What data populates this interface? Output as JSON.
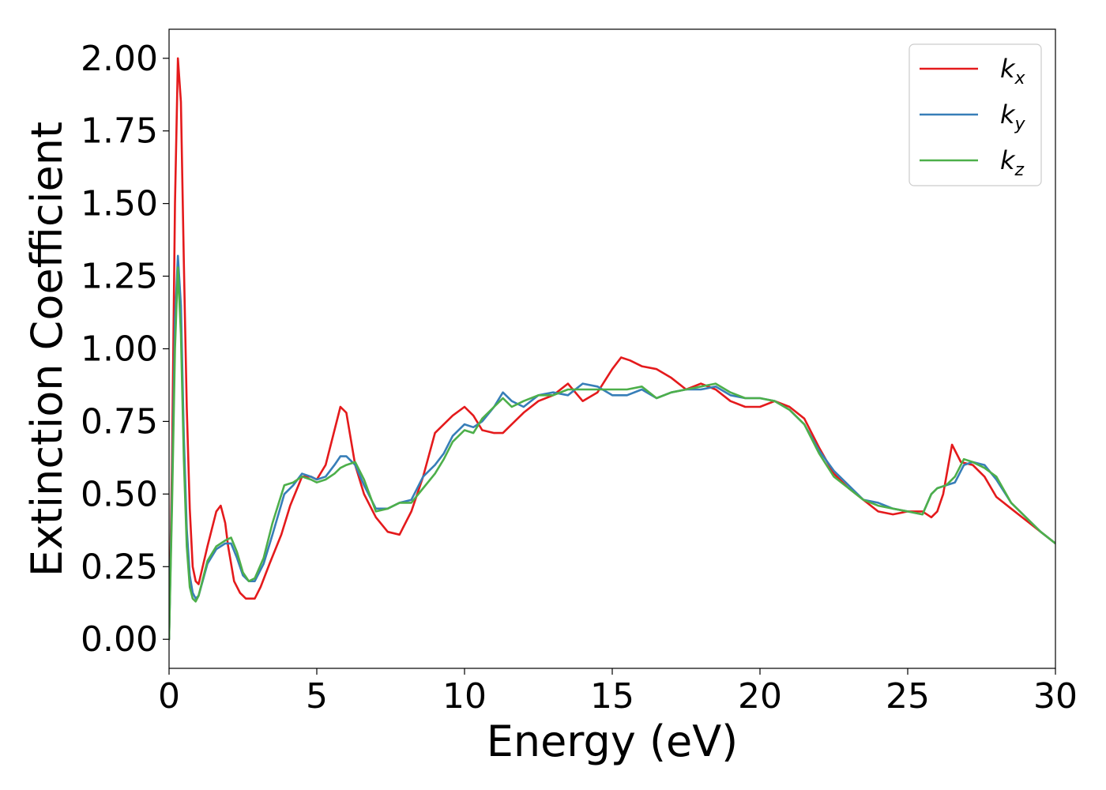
{
  "chart_data": {
    "type": "line",
    "title": "",
    "xlabel": "Energy (eV)",
    "ylabel": "Extinction Coefficient",
    "xlim": [
      0,
      30
    ],
    "ylim": [
      -0.1,
      2.1
    ],
    "xticks": [
      0,
      5,
      10,
      15,
      20,
      25,
      30
    ],
    "xtick_labels": [
      "0",
      "5",
      "10",
      "15",
      "20",
      "25",
      "30"
    ],
    "yticks": [
      0.0,
      0.25,
      0.5,
      0.75,
      1.0,
      1.25,
      1.5,
      1.75,
      2.0
    ],
    "ytick_labels": [
      "0.00",
      "0.25",
      "0.50",
      "0.75",
      "1.00",
      "1.25",
      "1.50",
      "1.75",
      "2.00"
    ],
    "grid": false,
    "legend_position": "top-right",
    "series": [
      {
        "name": "k_x",
        "label_base": "k",
        "label_sub": "x",
        "color": "#e41a1c",
        "x": [
          0,
          0.1,
          0.2,
          0.3,
          0.4,
          0.5,
          0.6,
          0.7,
          0.8,
          0.9,
          1.0,
          1.3,
          1.6,
          1.75,
          1.9,
          2.0,
          2.2,
          2.4,
          2.6,
          2.9,
          3.1,
          3.4,
          3.8,
          4.1,
          4.5,
          4.8,
          5.0,
          5.3,
          5.6,
          5.8,
          6.0,
          6.3,
          6.6,
          7.0,
          7.4,
          7.8,
          8.2,
          8.6,
          9.0,
          9.3,
          9.6,
          10.0,
          10.3,
          10.6,
          11.0,
          11.3,
          11.6,
          12.0,
          12.5,
          13.0,
          13.5,
          14.0,
          14.5,
          15.0,
          15.3,
          15.6,
          16.0,
          16.5,
          17.0,
          17.5,
          18.0,
          18.5,
          19.0,
          19.5,
          20.0,
          20.5,
          21.0,
          21.5,
          22.0,
          22.5,
          23.0,
          23.5,
          24.0,
          24.5,
          25.0,
          25.5,
          25.8,
          26.0,
          26.2,
          26.5,
          26.8,
          27.2,
          27.6,
          28.0,
          28.5,
          29.0,
          29.5,
          30.0
        ],
        "y": [
          0.0,
          0.6,
          1.5,
          2.0,
          1.85,
          1.3,
          0.8,
          0.45,
          0.25,
          0.2,
          0.19,
          0.32,
          0.44,
          0.46,
          0.4,
          0.32,
          0.2,
          0.16,
          0.14,
          0.14,
          0.18,
          0.26,
          0.36,
          0.46,
          0.56,
          0.56,
          0.55,
          0.6,
          0.72,
          0.8,
          0.78,
          0.6,
          0.5,
          0.42,
          0.37,
          0.36,
          0.44,
          0.56,
          0.71,
          0.74,
          0.77,
          0.8,
          0.77,
          0.72,
          0.71,
          0.71,
          0.74,
          0.78,
          0.82,
          0.84,
          0.88,
          0.82,
          0.85,
          0.93,
          0.97,
          0.96,
          0.94,
          0.93,
          0.9,
          0.86,
          0.88,
          0.86,
          0.82,
          0.8,
          0.8,
          0.82,
          0.8,
          0.76,
          0.66,
          0.57,
          0.52,
          0.48,
          0.44,
          0.43,
          0.44,
          0.44,
          0.42,
          0.44,
          0.5,
          0.67,
          0.61,
          0.6,
          0.56,
          0.49,
          0.45,
          0.41,
          0.37,
          0.33
        ]
      },
      {
        "name": "k_y",
        "label_base": "k",
        "label_sub": "y",
        "color": "#377eb8",
        "x": [
          0,
          0.1,
          0.2,
          0.3,
          0.4,
          0.5,
          0.6,
          0.7,
          0.8,
          0.9,
          1.0,
          1.3,
          1.6,
          1.9,
          2.1,
          2.3,
          2.5,
          2.7,
          2.9,
          3.2,
          3.5,
          3.9,
          4.2,
          4.5,
          4.8,
          5.0,
          5.3,
          5.6,
          5.8,
          6.0,
          6.3,
          6.6,
          7.0,
          7.4,
          7.8,
          8.2,
          8.6,
          9.0,
          9.3,
          9.6,
          10.0,
          10.3,
          10.6,
          11.0,
          11.3,
          11.6,
          12.0,
          12.5,
          13.0,
          13.5,
          14.0,
          14.5,
          15.0,
          15.5,
          16.0,
          16.5,
          17.0,
          17.5,
          18.0,
          18.5,
          19.0,
          19.5,
          20.0,
          20.5,
          21.0,
          21.5,
          22.0,
          22.5,
          23.0,
          23.5,
          24.0,
          24.5,
          25.0,
          25.5,
          25.8,
          26.0,
          26.3,
          26.6,
          26.9,
          27.2,
          27.6,
          28.0,
          28.5,
          29.0,
          29.5,
          30.0
        ],
        "y": [
          0.0,
          0.5,
          1.1,
          1.32,
          1.15,
          0.7,
          0.38,
          0.22,
          0.16,
          0.14,
          0.15,
          0.26,
          0.31,
          0.33,
          0.33,
          0.28,
          0.22,
          0.2,
          0.2,
          0.26,
          0.36,
          0.5,
          0.53,
          0.57,
          0.56,
          0.55,
          0.56,
          0.6,
          0.63,
          0.63,
          0.6,
          0.53,
          0.45,
          0.45,
          0.47,
          0.48,
          0.56,
          0.6,
          0.64,
          0.7,
          0.74,
          0.73,
          0.75,
          0.8,
          0.85,
          0.82,
          0.8,
          0.84,
          0.85,
          0.84,
          0.88,
          0.87,
          0.84,
          0.84,
          0.86,
          0.83,
          0.85,
          0.86,
          0.86,
          0.87,
          0.84,
          0.83,
          0.83,
          0.82,
          0.79,
          0.74,
          0.65,
          0.58,
          0.53,
          0.48,
          0.47,
          0.45,
          0.44,
          0.43,
          0.5,
          0.52,
          0.53,
          0.54,
          0.6,
          0.61,
          0.6,
          0.55,
          0.47,
          0.42,
          0.37,
          0.33
        ]
      },
      {
        "name": "k_z",
        "label_base": "k",
        "label_sub": "z",
        "color": "#4daf4a",
        "x": [
          0,
          0.1,
          0.2,
          0.3,
          0.4,
          0.5,
          0.6,
          0.7,
          0.8,
          0.9,
          1.0,
          1.3,
          1.6,
          1.9,
          2.1,
          2.3,
          2.5,
          2.7,
          2.9,
          3.2,
          3.5,
          3.9,
          4.2,
          4.5,
          4.8,
          5.0,
          5.3,
          5.6,
          5.8,
          6.0,
          6.3,
          6.6,
          7.0,
          7.4,
          7.8,
          8.2,
          8.6,
          9.0,
          9.3,
          9.6,
          10.0,
          10.3,
          10.6,
          11.0,
          11.3,
          11.6,
          12.0,
          12.5,
          13.0,
          13.5,
          14.0,
          14.5,
          15.0,
          15.5,
          16.0,
          16.5,
          17.0,
          17.5,
          18.0,
          18.5,
          19.0,
          19.5,
          20.0,
          20.5,
          21.0,
          21.5,
          22.0,
          22.5,
          23.0,
          23.5,
          24.0,
          24.5,
          25.0,
          25.5,
          25.8,
          26.0,
          26.3,
          26.6,
          26.9,
          27.2,
          27.6,
          28.0,
          28.5,
          29.0,
          29.5,
          30.0
        ],
        "y": [
          0.0,
          0.45,
          1.0,
          1.28,
          1.05,
          0.62,
          0.32,
          0.18,
          0.14,
          0.13,
          0.15,
          0.27,
          0.32,
          0.34,
          0.35,
          0.3,
          0.23,
          0.2,
          0.21,
          0.28,
          0.4,
          0.53,
          0.54,
          0.56,
          0.55,
          0.54,
          0.55,
          0.57,
          0.59,
          0.6,
          0.61,
          0.55,
          0.44,
          0.45,
          0.47,
          0.47,
          0.52,
          0.57,
          0.62,
          0.68,
          0.72,
          0.71,
          0.76,
          0.8,
          0.83,
          0.8,
          0.82,
          0.84,
          0.84,
          0.86,
          0.86,
          0.86,
          0.86,
          0.86,
          0.87,
          0.83,
          0.85,
          0.86,
          0.87,
          0.88,
          0.85,
          0.83,
          0.83,
          0.82,
          0.79,
          0.74,
          0.64,
          0.56,
          0.52,
          0.48,
          0.46,
          0.45,
          0.44,
          0.43,
          0.5,
          0.52,
          0.53,
          0.56,
          0.62,
          0.61,
          0.59,
          0.56,
          0.47,
          0.42,
          0.37,
          0.33
        ]
      }
    ]
  }
}
